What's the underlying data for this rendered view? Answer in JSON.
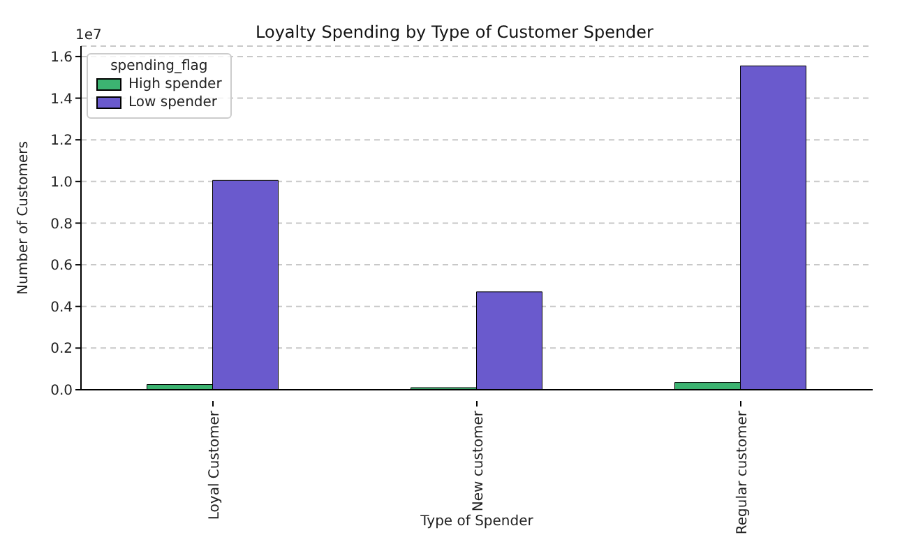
{
  "chart_data": {
    "type": "bar",
    "title": "Loyalty Spending by Type of Customer Spender",
    "xlabel": "Type of Spender",
    "ylabel": "Number of Customers",
    "legend_title": "spending_flag",
    "annotations": [
      "1e7"
    ],
    "categories": [
      "Loyal Customer",
      "New customer",
      "Regular customer"
    ],
    "series": [
      {
        "name": "High spender",
        "color": "#3cb371",
        "values": [
          0.025,
          0.01,
          0.035
        ]
      },
      {
        "name": "Low spender",
        "color": "#6a5acd",
        "values": [
          1.005,
          0.47,
          1.555
        ]
      }
    ],
    "ylim": [
      0,
      1.65
    ],
    "yticks": [
      {
        "value": 0,
        "label": "0.0"
      },
      {
        "value": 0.2,
        "label": "0.2"
      },
      {
        "value": 0.4,
        "label": "0.4"
      },
      {
        "value": 0.6,
        "label": "0.6"
      },
      {
        "value": 0.8,
        "label": "0.8"
      },
      {
        "value": 1,
        "label": "1.0"
      },
      {
        "value": 1.2,
        "label": "1.2"
      },
      {
        "value": 1.4,
        "label": "1.4"
      },
      {
        "value": 1.6,
        "label": "1.6"
      }
    ],
    "grid": "y",
    "legend": "top left"
  }
}
